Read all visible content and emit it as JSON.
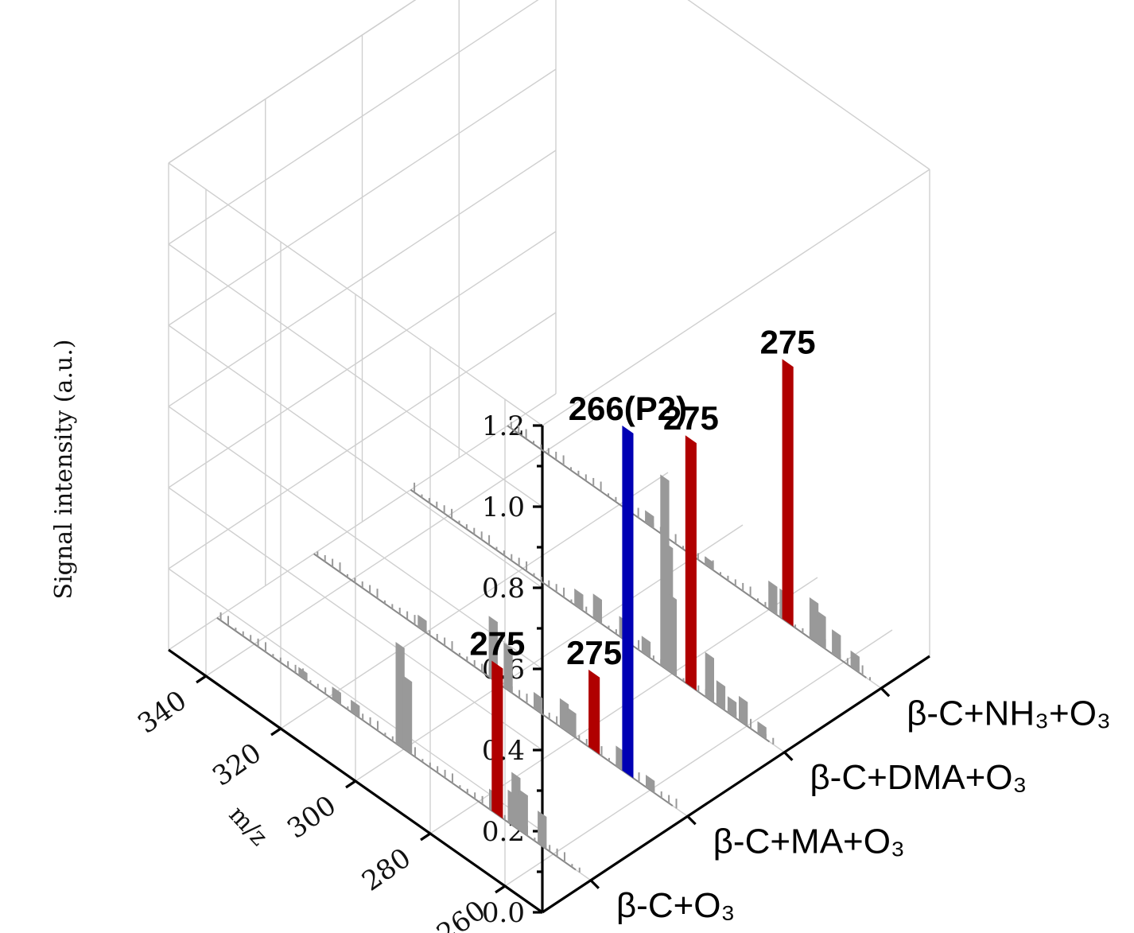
{
  "chart_data": {
    "type": "bar",
    "projection": "3d",
    "ylabel": "Signal intensity (a.u.)",
    "xlabel": "m/z",
    "x_ticks": [
      260,
      280,
      300,
      320,
      340
    ],
    "x_range": [
      250,
      350
    ],
    "z_ticks": [
      "0.0",
      "0.2",
      "0.4",
      "0.6",
      "0.8",
      "1.0",
      "1.2"
    ],
    "z_range": [
      0,
      1.2
    ],
    "grid": true,
    "categories": [
      "β-C+O₃",
      "β-C+MA+O₃",
      "β-C+DMA+O₃",
      "β-C+NH₃+O₃"
    ],
    "colors": {
      "highlight_275": "#b00000",
      "highlight_266": "#0000b4",
      "other": "#999999"
    },
    "highlights": [
      {
        "series": 0,
        "mz": 275,
        "value": 0.37,
        "label": "275",
        "color": "#b00000"
      },
      {
        "series": 1,
        "mz": 275,
        "value": 0.19,
        "label": "275",
        "color": "#b00000"
      },
      {
        "series": 1,
        "mz": 266,
        "value": 0.85,
        "label": "266(P2)",
        "color": "#0000b4"
      },
      {
        "series": 2,
        "mz": 275,
        "value": 0.61,
        "label": "275",
        "color": "#b00000"
      },
      {
        "series": 3,
        "mz": 275,
        "value": 0.64,
        "label": "275",
        "color": "#b00000"
      }
    ],
    "series": [
      {
        "name": "β-C+O₃",
        "peaks": [
          [
            263,
            0.08
          ],
          [
            268,
            0.1
          ],
          [
            270,
            0.13
          ],
          [
            271,
            0.08
          ],
          [
            276,
            0.05
          ],
          [
            299,
            0.18
          ],
          [
            301,
            0.25
          ],
          [
            313,
            0.03
          ],
          [
            318,
            0.03
          ],
          [
            327,
            0.02
          ]
        ]
      },
      {
        "name": "β-C+MA+O₃",
        "peaks": [
          [
            260,
            0.03
          ],
          [
            268,
            0.05
          ],
          [
            281,
            0.06
          ],
          [
            283,
            0.07
          ],
          [
            290,
            0.04
          ],
          [
            298,
            0.11
          ],
          [
            302,
            0.15
          ],
          [
            321,
            0.03
          ]
        ]
      },
      {
        "name": "β-C+DMA+O₃",
        "peaks": [
          [
            256,
            0.03
          ],
          [
            261,
            0.06
          ],
          [
            264,
            0.04
          ],
          [
            267,
            0.06
          ],
          [
            270,
            0.11
          ],
          [
            280,
            0.19
          ],
          [
            281,
            0.31
          ],
          [
            282,
            0.47
          ],
          [
            287,
            0.04
          ],
          [
            293,
            0.05
          ],
          [
            300,
            0.06
          ],
          [
            305,
            0.04
          ]
        ]
      },
      {
        "name": "β-C+NH₃+O₃",
        "peaks": [
          [
            257,
            0.04
          ],
          [
            262,
            0.06
          ],
          [
            266,
            0.08
          ],
          [
            268,
            0.1
          ],
          [
            276,
            0.07
          ],
          [
            279,
            0.07
          ],
          [
            296,
            0.02
          ],
          [
            312,
            0.03
          ]
        ]
      }
    ]
  }
}
